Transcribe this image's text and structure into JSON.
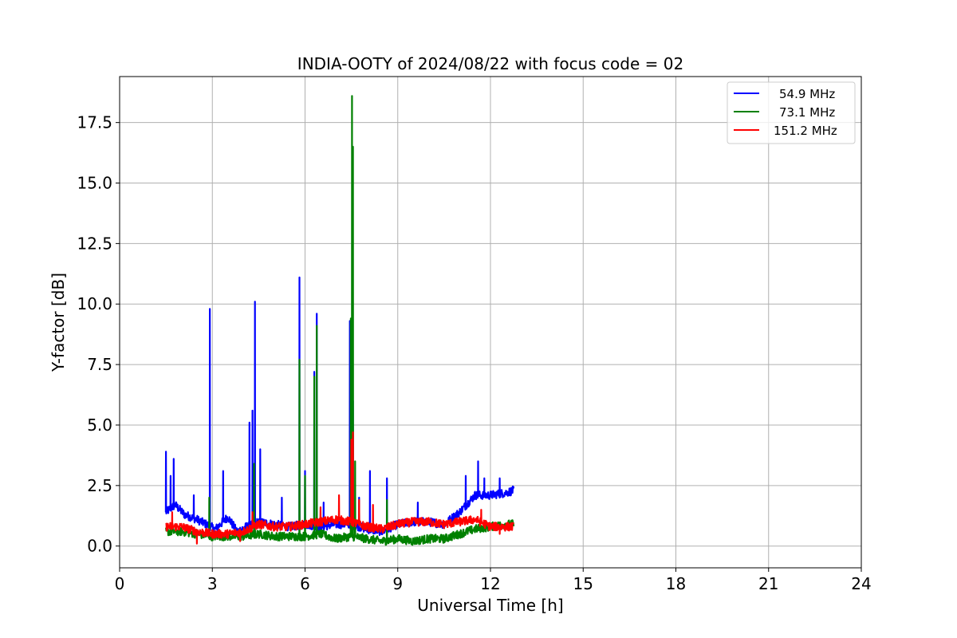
{
  "chart_data": {
    "type": "line",
    "title": "INDIA-OOTY of 2024/08/22 with focus code = 02",
    "xlabel": "Universal Time [h]",
    "ylabel": "Y-factor [dB]",
    "xlim": [
      0,
      24
    ],
    "ylim": [
      -0.9,
      19.4
    ],
    "xticks": [
      "0",
      "3",
      "6",
      "9",
      "12",
      "15",
      "18",
      "21",
      "24"
    ],
    "yticks": [
      "0.0",
      "2.5",
      "5.0",
      "7.5",
      "10.0",
      "12.5",
      "15.0",
      "17.5"
    ],
    "grid": true,
    "legend_position": "top-right",
    "series": [
      {
        "name": "54.9 MHz",
        "color": "#0000ff",
        "base": [
          [
            1.5,
            1.4
          ],
          [
            1.8,
            1.7
          ],
          [
            2.1,
            1.3
          ],
          [
            2.5,
            1.1
          ],
          [
            2.8,
            0.9
          ],
          [
            3.1,
            0.7
          ],
          [
            3.5,
            1.2
          ],
          [
            3.8,
            0.6
          ],
          [
            4.1,
            0.8
          ],
          [
            4.5,
            1.0
          ],
          [
            5.0,
            0.9
          ],
          [
            5.5,
            0.8
          ],
          [
            6.0,
            0.9
          ],
          [
            6.5,
            0.8
          ],
          [
            7.0,
            0.9
          ],
          [
            7.5,
            0.9
          ],
          [
            8.0,
            0.7
          ],
          [
            8.5,
            0.6
          ],
          [
            9.0,
            0.9
          ],
          [
            9.5,
            1.0
          ],
          [
            10.0,
            1.0
          ],
          [
            10.5,
            0.9
          ],
          [
            11.0,
            1.4
          ],
          [
            11.5,
            2.1
          ],
          [
            12.0,
            2.1
          ],
          [
            12.5,
            2.2
          ],
          [
            12.75,
            2.3
          ]
        ],
        "spikes": [
          [
            1.5,
            3.9
          ],
          [
            1.65,
            2.9
          ],
          [
            1.75,
            3.6
          ],
          [
            2.4,
            2.1
          ],
          [
            2.92,
            9.8
          ],
          [
            3.35,
            3.1
          ],
          [
            4.2,
            5.1
          ],
          [
            4.3,
            5.6
          ],
          [
            4.38,
            10.1
          ],
          [
            4.55,
            4.0
          ],
          [
            5.25,
            2.0
          ],
          [
            5.82,
            11.1
          ],
          [
            6.0,
            3.1
          ],
          [
            6.3,
            7.2
          ],
          [
            6.38,
            9.6
          ],
          [
            6.6,
            1.8
          ],
          [
            7.45,
            9.3
          ],
          [
            7.55,
            6.0
          ],
          [
            7.75,
            2.0
          ],
          [
            8.1,
            3.1
          ],
          [
            8.65,
            2.8
          ],
          [
            9.65,
            1.8
          ],
          [
            11.2,
            2.9
          ],
          [
            11.6,
            3.5
          ],
          [
            11.8,
            2.8
          ],
          [
            12.3,
            2.8
          ]
        ]
      },
      {
        "name": "73.1 MHz",
        "color": "#008000",
        "base": [
          [
            1.5,
            0.6
          ],
          [
            2.0,
            0.6
          ],
          [
            2.5,
            0.5
          ],
          [
            3.0,
            0.4
          ],
          [
            3.5,
            0.4
          ],
          [
            4.0,
            0.4
          ],
          [
            4.5,
            0.5
          ],
          [
            5.0,
            0.4
          ],
          [
            5.5,
            0.4
          ],
          [
            6.0,
            0.4
          ],
          [
            6.5,
            0.5
          ],
          [
            7.0,
            0.3
          ],
          [
            7.5,
            0.4
          ],
          [
            8.0,
            0.3
          ],
          [
            8.5,
            0.2
          ],
          [
            9.0,
            0.3
          ],
          [
            9.5,
            0.2
          ],
          [
            10.0,
            0.3
          ],
          [
            10.5,
            0.3
          ],
          [
            11.0,
            0.5
          ],
          [
            11.5,
            0.7
          ],
          [
            12.0,
            0.8
          ],
          [
            12.5,
            0.9
          ],
          [
            12.75,
            0.9
          ]
        ],
        "spikes": [
          [
            2.9,
            2.0
          ],
          [
            4.35,
            3.4
          ],
          [
            5.82,
            7.7
          ],
          [
            6.0,
            2.9
          ],
          [
            6.3,
            7.0
          ],
          [
            6.38,
            9.1
          ],
          [
            7.48,
            9.4
          ],
          [
            7.52,
            18.6
          ],
          [
            7.55,
            16.5
          ],
          [
            7.62,
            3.5
          ],
          [
            8.65,
            1.9
          ]
        ]
      },
      {
        "name": "151.2 MHz",
        "color": "#ff0000",
        "base": [
          [
            1.5,
            0.8
          ],
          [
            2.0,
            0.8
          ],
          [
            2.5,
            0.6
          ],
          [
            3.0,
            0.5
          ],
          [
            3.5,
            0.5
          ],
          [
            4.0,
            0.6
          ],
          [
            4.5,
            0.9
          ],
          [
            5.0,
            0.8
          ],
          [
            5.5,
            0.8
          ],
          [
            6.0,
            0.9
          ],
          [
            6.5,
            1.0
          ],
          [
            7.0,
            1.1
          ],
          [
            7.5,
            1.0
          ],
          [
            8.0,
            0.8
          ],
          [
            8.5,
            0.7
          ],
          [
            9.0,
            0.9
          ],
          [
            9.5,
            1.0
          ],
          [
            10.0,
            1.0
          ],
          [
            10.5,
            0.9
          ],
          [
            11.0,
            1.0
          ],
          [
            11.5,
            1.1
          ],
          [
            12.0,
            0.8
          ],
          [
            12.5,
            0.8
          ],
          [
            12.75,
            0.8
          ]
        ],
        "spikes": [
          [
            1.7,
            1.4
          ],
          [
            2.5,
            0.1
          ],
          [
            3.9,
            0.2
          ],
          [
            4.3,
            1.4
          ],
          [
            6.5,
            1.6
          ],
          [
            7.1,
            2.1
          ],
          [
            7.5,
            4.4
          ],
          [
            7.55,
            4.7
          ],
          [
            7.75,
            1.9
          ],
          [
            8.2,
            1.7
          ],
          [
            11.7,
            1.5
          ],
          [
            12.3,
            0.5
          ]
        ]
      }
    ]
  }
}
